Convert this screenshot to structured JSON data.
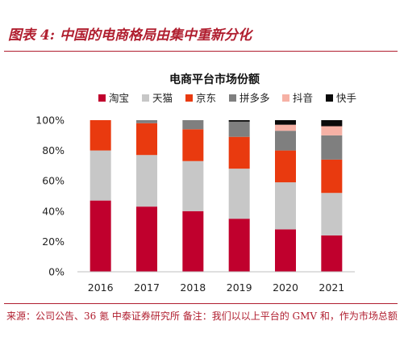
{
  "figure_title": "图表 4:  中国的电商格局由集中重新分化",
  "source_note": "来源：公司公告、36 氪  中泰证券研究所  备注：我们以以上平台的 GMV 和，作为市场总额",
  "chart_data": {
    "type": "bar",
    "stacked": true,
    "title": "电商平台市场份额",
    "categories": [
      "2016",
      "2017",
      "2018",
      "2019",
      "2020",
      "2021"
    ],
    "ylim": [
      0,
      100
    ],
    "yticks": [
      0,
      20,
      40,
      60,
      80,
      100
    ],
    "ytick_labels": [
      "0%",
      "20%",
      "40%",
      "60%",
      "80%",
      "100%"
    ],
    "legend_position": "top",
    "series": [
      {
        "name": "淘宝",
        "color": "#c0002d",
        "values": [
          47,
          43,
          40,
          35,
          28,
          24
        ]
      },
      {
        "name": "天猫",
        "color": "#c7c7c7",
        "values": [
          33,
          34,
          33,
          33,
          31,
          28
        ]
      },
      {
        "name": "京东",
        "color": "#e93a0f",
        "values": [
          20,
          21,
          21,
          21,
          21,
          22
        ]
      },
      {
        "name": "拼多多",
        "color": "#7f7f7f",
        "values": [
          0,
          2,
          6,
          10,
          13,
          16
        ]
      },
      {
        "name": "抖音",
        "color": "#f6b1a5",
        "values": [
          0,
          0,
          0,
          0,
          4,
          6
        ]
      },
      {
        "name": "快手",
        "color": "#0a0a0a",
        "values": [
          0,
          0,
          0,
          1,
          3,
          4
        ]
      }
    ]
  }
}
